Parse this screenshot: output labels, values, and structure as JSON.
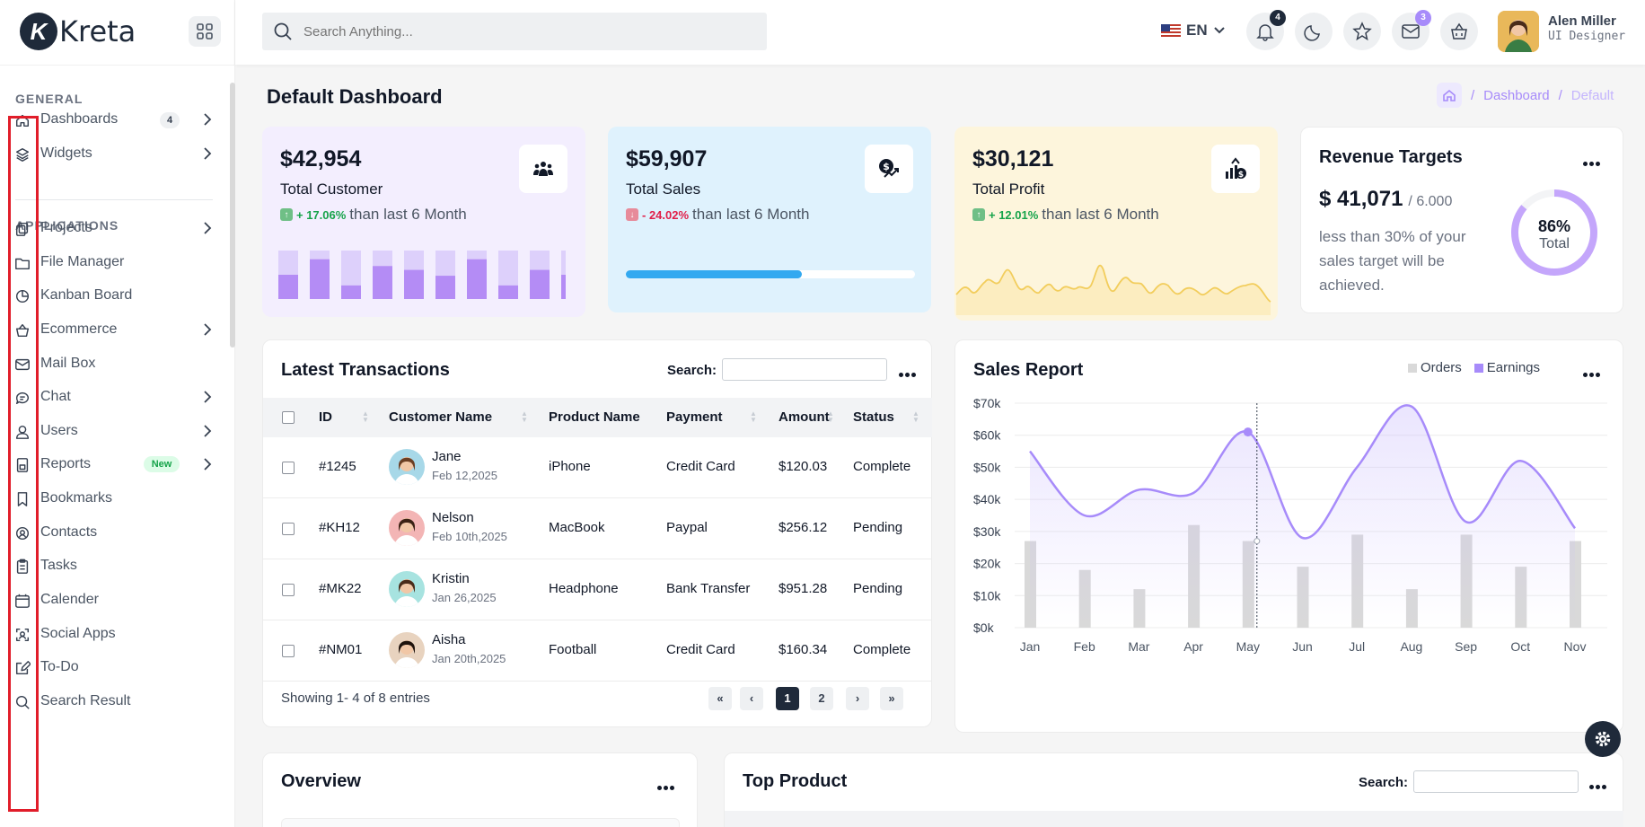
{
  "app": {
    "brand": "Kreta",
    "logo_letter": "K"
  },
  "search": {
    "placeholder": "Search Anything..."
  },
  "header": {
    "lang": "EN",
    "notif_count": "4",
    "mail_count": "3",
    "user_name": "Alen Miller",
    "user_role": "UI Designer"
  },
  "sidebar": {
    "general_title": "GENERAL",
    "applications_title": "APPLICATIONS",
    "items": [
      {
        "label": "Dashboards",
        "icon": "home-icon",
        "badge": "4",
        "chevron": true
      },
      {
        "label": "Widgets",
        "icon": "layers-icon",
        "chevron": true
      },
      {
        "label": "Projects",
        "icon": "copy-icon",
        "chevron": true
      },
      {
        "label": "File Manager",
        "icon": "folder-icon"
      },
      {
        "label": "Kanban Board",
        "icon": "kanban-icon"
      },
      {
        "label": "Ecommerce",
        "icon": "basket-icon",
        "chevron": true
      },
      {
        "label": "Mail Box",
        "icon": "mail-icon"
      },
      {
        "label": "Chat",
        "icon": "chat-icon",
        "chevron": true
      },
      {
        "label": "Users",
        "icon": "user-icon",
        "chevron": true
      },
      {
        "label": "Reports",
        "icon": "report-icon",
        "new_badge": "New",
        "chevron": true
      },
      {
        "label": "Bookmarks",
        "icon": "bookmark-icon"
      },
      {
        "label": "Contacts",
        "icon": "contacts-icon"
      },
      {
        "label": "Tasks",
        "icon": "clipboard-icon"
      },
      {
        "label": "Calender",
        "icon": "calendar-icon"
      },
      {
        "label": "Social Apps",
        "icon": "social-icon"
      },
      {
        "label": "To-Do",
        "icon": "edit-icon"
      },
      {
        "label": "Search Result",
        "icon": "search-icon"
      }
    ]
  },
  "page": {
    "title": "Default Dashboard",
    "breadcrumb": [
      "Dashboard",
      "Default"
    ]
  },
  "stats": [
    {
      "value": "$42,954",
      "label": "Total Customer",
      "change": "+ 17.06%",
      "direction": "up",
      "suffix": "than last 6 Month",
      "bg": "#f3eefe",
      "icon": "users-icon"
    },
    {
      "value": "$59,907",
      "label": "Total Sales",
      "change": "- 24.02%",
      "direction": "down",
      "suffix": "than last 6 Month",
      "bg": "#dff2fd",
      "icon": "sales-icon",
      "progress": 0.61
    },
    {
      "value": "$30,121",
      "label": "Total Profit",
      "change": "+ 12.01%",
      "direction": "up",
      "suffix": "than last 6 Month",
      "bg": "#fdf5dc",
      "icon": "profit-icon"
    }
  ],
  "customer_bars": [
    [
      1.0,
      0.5
    ],
    [
      1.0,
      0.82
    ],
    [
      1.0,
      0.28
    ],
    [
      1.0,
      0.68
    ],
    [
      1.0,
      0.6
    ],
    [
      1.0,
      0.48
    ],
    [
      1.0,
      0.82
    ],
    [
      1.0,
      0.28
    ],
    [
      1.0,
      0.6
    ],
    [
      1.0,
      0.5
    ]
  ],
  "revenue": {
    "title": "Revenue Targets",
    "amount": "$ 41,071",
    "target": "/ 6.000",
    "note": "less than 30% of your sales target will be achieved.",
    "percent_label": "86%",
    "percent_value": 86,
    "total_label": "Total"
  },
  "transactions": {
    "title": "Latest Transactions",
    "search_label": "Search:",
    "columns": [
      "ID",
      "Customer Name",
      "Product Name",
      "Payment",
      "Amount",
      "Status"
    ],
    "rows": [
      {
        "id": "#1245",
        "name": "Jane",
        "date": "Feb 12,2025",
        "product": "iPhone",
        "payment": "Credit Card",
        "amount": "$120.03",
        "status": "Complete"
      },
      {
        "id": "#KH12",
        "name": "Nelson",
        "date": "Feb 10th,2025",
        "product": "MacBook",
        "payment": "Paypal",
        "amount": "$256.12",
        "status": "Pending"
      },
      {
        "id": "#MK22",
        "name": "Kristin",
        "date": "Jan 26,2025",
        "product": "Headphone",
        "payment": "Bank Transfer",
        "amount": "$951.28",
        "status": "Pending"
      },
      {
        "id": "#NM01",
        "name": "Aisha",
        "date": "Jan 20th,2025",
        "product": "Football",
        "payment": "Credit Card",
        "amount": "$160.34",
        "status": "Complete"
      }
    ],
    "showing": "Showing 1- 4 of 8 entries",
    "pages": [
      "«",
      "‹",
      "1",
      "2",
      "›",
      "»"
    ],
    "active_page": "1"
  },
  "sales": {
    "title": "Sales Report",
    "legend": [
      {
        "name": "Orders",
        "color": "#d9d9d9"
      },
      {
        "name": "Earnings",
        "color": "#a78bfa"
      }
    ]
  },
  "chart_data": {
    "type": "bar",
    "categories": [
      "Jan",
      "Feb",
      "Mar",
      "Apr",
      "May",
      "Jun",
      "Jul",
      "Aug",
      "Sep",
      "Oct",
      "Nov"
    ],
    "yticks": [
      "$0k",
      "$10k",
      "$20k",
      "$30k",
      "$40k",
      "$50k",
      "$60k",
      "$70k"
    ],
    "ylim": [
      0,
      70
    ],
    "series": [
      {
        "name": "Orders",
        "type": "bar",
        "values": [
          27,
          18,
          12,
          32,
          27,
          19,
          29,
          12,
          29,
          19,
          27
        ]
      },
      {
        "name": "Earnings",
        "type": "line",
        "values": [
          55,
          35,
          43,
          42,
          61,
          28,
          50,
          69,
          33,
          52,
          31
        ]
      }
    ],
    "highlight": "May"
  },
  "overview": {
    "title": "Overview"
  },
  "top_product": {
    "title": "Top Product",
    "search_label": "Search:"
  }
}
